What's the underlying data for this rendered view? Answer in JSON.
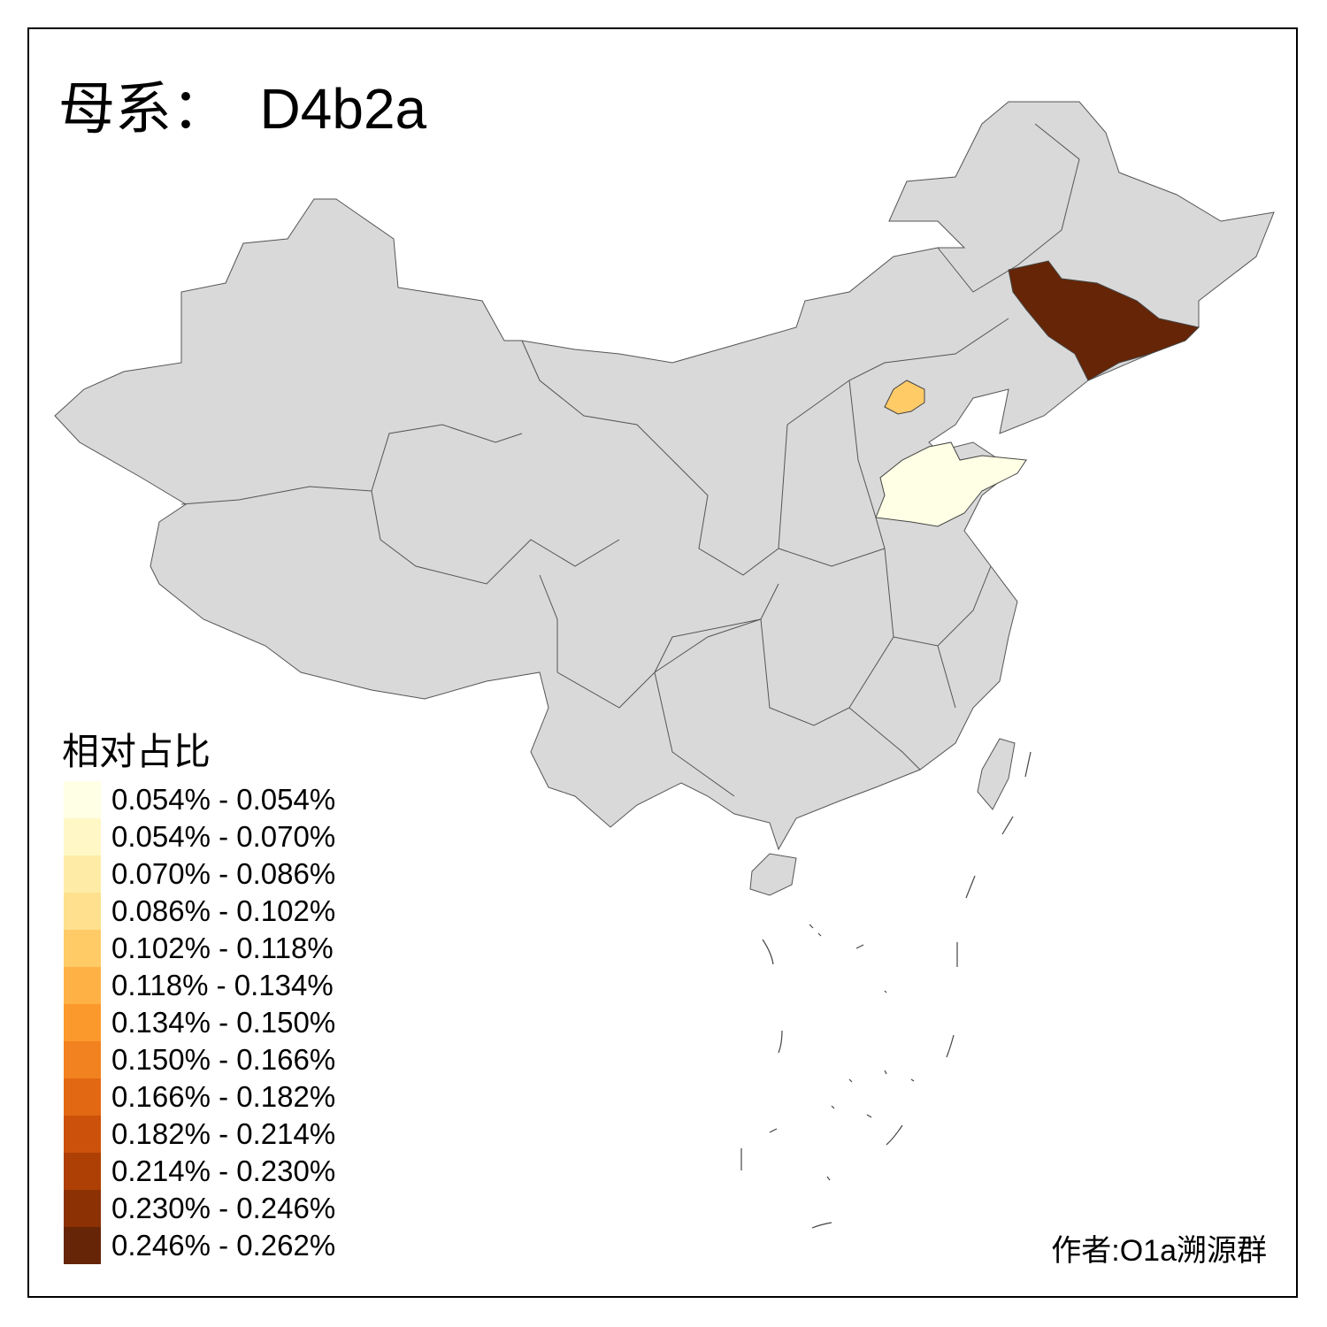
{
  "title": "母系：  D4b2a",
  "legend": {
    "title": "相对占比",
    "items": [
      {
        "label": "0.054% - 0.054%",
        "color": "#FFFFE5"
      },
      {
        "label": "0.054% - 0.070%",
        "color": "#FFF7C5"
      },
      {
        "label": "0.070% - 0.086%",
        "color": "#FEECA6"
      },
      {
        "label": "0.086% - 0.102%",
        "color": "#FEE08E"
      },
      {
        "label": "0.102% - 0.118%",
        "color": "#FECB67"
      },
      {
        "label": "0.118% - 0.134%",
        "color": "#FEB245"
      },
      {
        "label": "0.134% - 0.150%",
        "color": "#FB992C"
      },
      {
        "label": "0.150% - 0.166%",
        "color": "#F2821F"
      },
      {
        "label": "0.166% - 0.182%",
        "color": "#E26814"
      },
      {
        "label": "0.182% - 0.214%",
        "color": "#CC510B"
      },
      {
        "label": "0.214% - 0.230%",
        "color": "#AE3F05"
      },
      {
        "label": "0.230% - 0.246%",
        "color": "#8B3104"
      },
      {
        "label": "0.246% - 0.262%",
        "color": "#662506"
      }
    ]
  },
  "map": {
    "no_data_color": "#D9D9D9",
    "highlighted_regions": [
      {
        "region": "Jilin",
        "color": "#662506"
      },
      {
        "region": "Beijing",
        "color": "#FECB67"
      },
      {
        "region": "Shandong",
        "color": "#FFFFE5"
      }
    ]
  },
  "author": "作者:O1a溯源群"
}
